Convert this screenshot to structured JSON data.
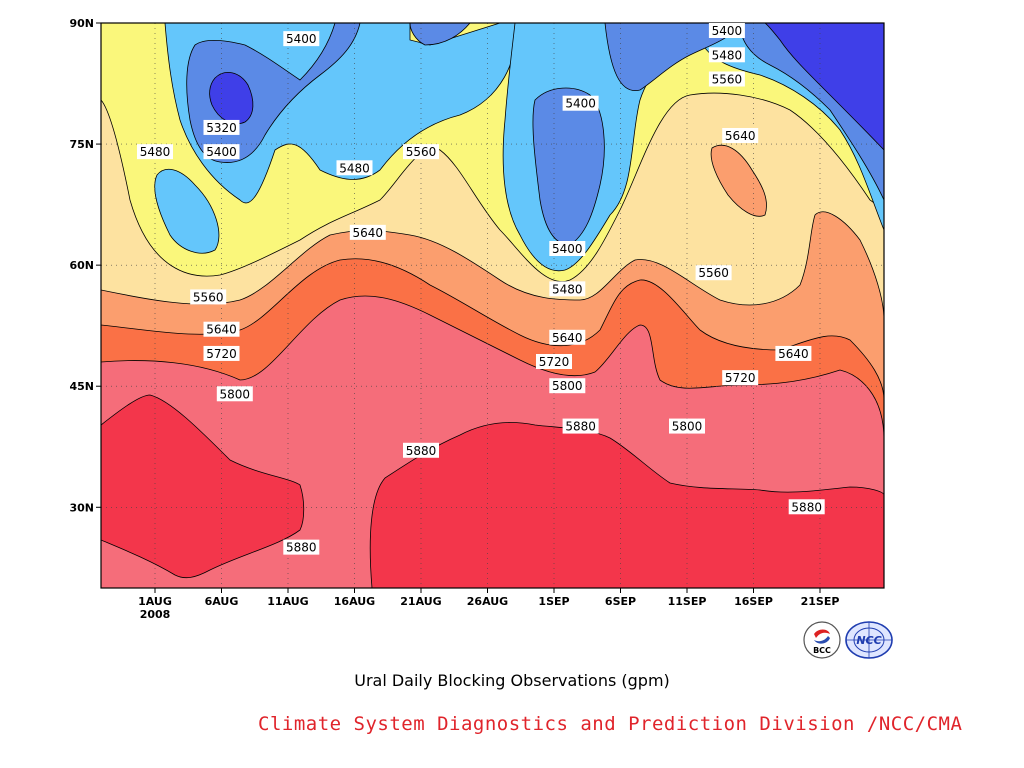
{
  "chart_data": {
    "type": "filled-contour",
    "title": "Ural Daily Blocking Observations (gpm)",
    "credit": "Climate System Diagnostics and Prediction Division /NCC/CMA",
    "x_ticks": [
      "1AUG",
      "6AUG",
      "11AUG",
      "16AUG",
      "21AUG",
      "26AUG",
      "1SEP",
      "6SEP",
      "11SEP",
      "16SEP",
      "21SEP"
    ],
    "x_year_label": "2008",
    "y_ticks": [
      "90N",
      "75N",
      "60N",
      "45N",
      "30N"
    ],
    "y_values": [
      90,
      75,
      60,
      45,
      30
    ],
    "ylim": [
      20,
      90
    ],
    "grid": true,
    "contour_levels": [
      5320,
      5400,
      5480,
      5560,
      5640,
      5720,
      5800,
      5880
    ],
    "level_colors": [
      "#3f3fe8",
      "#5b8ae6",
      "#64c6fb",
      "#faf77b",
      "#fde2a0",
      "#fb9e6e",
      "#fa7146",
      "#f56d7a",
      "#f3364b"
    ],
    "contour_labels": [
      {
        "text": "5400",
        "date": "12AUG",
        "lat": 88
      },
      {
        "text": "5320",
        "date": "6AUG",
        "lat": 77
      },
      {
        "text": "5400",
        "date": "6AUG",
        "lat": 74
      },
      {
        "text": "5480",
        "date": "1AUG",
        "lat": 74
      },
      {
        "text": "5560",
        "date": "21AUG",
        "lat": 74
      },
      {
        "text": "5480",
        "date": "16AUG",
        "lat": 72
      },
      {
        "text": "5640",
        "date": "17AUG",
        "lat": 64
      },
      {
        "text": "5560",
        "date": "5AUG",
        "lat": 56
      },
      {
        "text": "5640",
        "date": "6AUG",
        "lat": 52
      },
      {
        "text": "5720",
        "date": "6AUG",
        "lat": 49
      },
      {
        "text": "5800",
        "date": "7AUG",
        "lat": 44
      },
      {
        "text": "5880",
        "date": "12AUG",
        "lat": 25
      },
      {
        "text": "5880",
        "date": "21AUG",
        "lat": 37
      },
      {
        "text": "5400",
        "date": "2SEP",
        "lat": 80
      },
      {
        "text": "5400",
        "date": "1SEP",
        "lat": 62
      },
      {
        "text": "5480",
        "date": "1SEP",
        "lat": 57
      },
      {
        "text": "5640",
        "date": "1SEP",
        "lat": 51
      },
      {
        "text": "5720",
        "date": "31AUG",
        "lat": 48
      },
      {
        "text": "5800",
        "date": "1SEP",
        "lat": 45
      },
      {
        "text": "5880",
        "date": "2SEP",
        "lat": 40
      },
      {
        "text": "5400",
        "date": "13SEP",
        "lat": 90
      },
      {
        "text": "5480",
        "date": "13SEP",
        "lat": 86
      },
      {
        "text": "5560",
        "date": "13SEP",
        "lat": 83
      },
      {
        "text": "5640",
        "date": "14SEP",
        "lat": 76
      },
      {
        "text": "5560",
        "date": "12SEP",
        "lat": 59
      },
      {
        "text": "5640",
        "date": "18SEP",
        "lat": 49
      },
      {
        "text": "5720",
        "date": "14SEP",
        "lat": 46
      },
      {
        "text": "5800",
        "date": "10SEP",
        "lat": 40
      },
      {
        "text": "5880",
        "date": "19SEP",
        "lat": 30
      }
    ]
  },
  "logos": {
    "bcc_label": "BCC",
    "ncc_label": "NCC"
  }
}
